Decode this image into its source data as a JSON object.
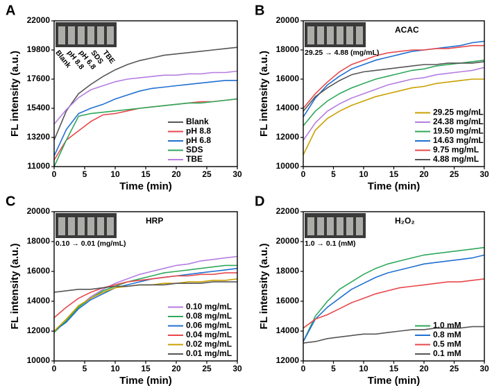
{
  "chart_data": [
    {
      "type": "line",
      "label": "A",
      "xlabel": "Time (min)",
      "ylabel": "FL intensity (a.u.)",
      "inset_caption": null,
      "x": [
        0,
        2,
        4,
        6,
        8,
        10,
        12,
        14,
        16,
        18,
        20,
        22,
        24,
        26,
        28,
        30
      ],
      "xlim": [
        0,
        30
      ],
      "xticks": [
        0,
        5,
        10,
        15,
        20,
        25,
        30
      ],
      "ylim": [
        11000,
        22000
      ],
      "yticks": [
        11000,
        13200,
        15400,
        17600,
        19800,
        22000
      ],
      "legend": "lower right",
      "series": [
        {
          "name": "Blank",
          "color": "#555555",
          "values": [
            13000,
            15200,
            16500,
            17200,
            17800,
            18300,
            18700,
            19000,
            19200,
            19400,
            19500,
            19600,
            19700,
            19800,
            19900,
            20000
          ]
        },
        {
          "name": "pH 8.8",
          "color": "#e8474b",
          "values": [
            11500,
            13000,
            13700,
            14400,
            14900,
            15000,
            15200,
            15400,
            15500,
            15600,
            15700,
            15800,
            15900,
            15900,
            16000,
            16100
          ]
        },
        {
          "name": "pH 6.8",
          "color": "#1f6fd1",
          "values": [
            11800,
            13800,
            15000,
            15400,
            15700,
            16100,
            16400,
            16700,
            16900,
            17000,
            17100,
            17200,
            17300,
            17400,
            17500,
            17500
          ]
        },
        {
          "name": "SDS",
          "color": "#2ea85a",
          "values": [
            11000,
            13000,
            14800,
            15000,
            15100,
            15200,
            15300,
            15400,
            15500,
            15600,
            15700,
            15800,
            15800,
            15900,
            16000,
            16100
          ]
        },
        {
          "name": "TBE",
          "color": "#b47de0",
          "values": [
            14200,
            15300,
            16200,
            16800,
            17100,
            17400,
            17600,
            17700,
            17800,
            17900,
            17900,
            18000,
            18000,
            18100,
            18100,
            18200
          ]
        }
      ]
    },
    {
      "type": "line",
      "label": "B",
      "xlabel": "Time (min)",
      "ylabel": "FL intensity (a.u.)",
      "annotation": "ACAC",
      "inset_caption": "29.25 → 4.88 (mg/mL)",
      "x": [
        0,
        2,
        4,
        6,
        8,
        10,
        12,
        14,
        16,
        18,
        20,
        22,
        24,
        26,
        28,
        30
      ],
      "xlim": [
        0,
        30
      ],
      "xticks": [
        0,
        5,
        10,
        15,
        20,
        25,
        30
      ],
      "ylim": [
        10000,
        20000
      ],
      "yticks": [
        10000,
        12000,
        14000,
        16000,
        18000,
        20000
      ],
      "legend": "lower right",
      "series": [
        {
          "name": "29.25 mg/mL",
          "color": "#c9a000",
          "values": [
            10800,
            12500,
            13300,
            13800,
            14200,
            14500,
            14800,
            15000,
            15200,
            15400,
            15500,
            15700,
            15800,
            15900,
            16000,
            16000
          ]
        },
        {
          "name": "24.38 mg/mL",
          "color": "#b47de0",
          "values": [
            11800,
            13000,
            13800,
            14300,
            14700,
            15000,
            15300,
            15600,
            15800,
            16000,
            16100,
            16300,
            16400,
            16500,
            16600,
            16800
          ]
        },
        {
          "name": "19.50 mg/mL",
          "color": "#2ea85a",
          "values": [
            12800,
            13800,
            14500,
            15000,
            15400,
            15700,
            16000,
            16200,
            16400,
            16600,
            16700,
            16900,
            17000,
            17100,
            17200,
            17300
          ]
        },
        {
          "name": "14.63 mg/mL",
          "color": "#1f6fd1",
          "values": [
            13400,
            14700,
            15600,
            16200,
            16700,
            17000,
            17300,
            17500,
            17700,
            17900,
            18000,
            18100,
            18200,
            18300,
            18500,
            18600
          ]
        },
        {
          "name": "9.75 mg/mL",
          "color": "#e8474b",
          "values": [
            14000,
            15000,
            15800,
            16500,
            17000,
            17300,
            17600,
            17800,
            17900,
            18000,
            18000,
            18100,
            18100,
            18200,
            18300,
            18300
          ]
        },
        {
          "name": "4.88 mg/mL",
          "color": "#555555",
          "values": [
            13800,
            14800,
            15400,
            15900,
            16300,
            16500,
            16600,
            16700,
            16800,
            16900,
            17000,
            17000,
            17100,
            17100,
            17100,
            17200
          ]
        }
      ]
    },
    {
      "type": "line",
      "label": "C",
      "xlabel": "Time (min)",
      "ylabel": "FL intensity (a.u.)",
      "annotation": "HRP",
      "inset_caption": "0.10 →  0.01 (mg/mL)",
      "x": [
        0,
        2,
        4,
        6,
        8,
        10,
        12,
        14,
        16,
        18,
        20,
        22,
        24,
        26,
        28,
        30
      ],
      "xlim": [
        0,
        30
      ],
      "xticks": [
        0,
        5,
        10,
        15,
        20,
        25,
        30
      ],
      "ylim": [
        10000,
        20000
      ],
      "yticks": [
        10000,
        12000,
        14000,
        16000,
        18000,
        20000
      ],
      "legend": "lower right",
      "series": [
        {
          "name": "0.10 mg/mL",
          "color": "#b47de0",
          "values": [
            12000,
            12600,
            13600,
            14300,
            14800,
            15200,
            15500,
            15800,
            16000,
            16200,
            16400,
            16500,
            16700,
            16800,
            16900,
            17000
          ]
        },
        {
          "name": "0.08 mg/mL",
          "color": "#2ea85a",
          "values": [
            11900,
            12700,
            13600,
            14200,
            14700,
            15000,
            15300,
            15500,
            15700,
            15900,
            16000,
            16100,
            16200,
            16300,
            16400,
            16400
          ]
        },
        {
          "name": "0.06 mg/mL",
          "color": "#1f6fd1",
          "values": [
            12000,
            12600,
            13500,
            14100,
            14500,
            14900,
            15100,
            15300,
            15500,
            15600,
            15700,
            15800,
            15900,
            16000,
            16100,
            16200
          ]
        },
        {
          "name": "0.04 mg/mL",
          "color": "#e8474b",
          "values": [
            12900,
            13600,
            14200,
            14600,
            14900,
            15100,
            15300,
            15400,
            15500,
            15600,
            15700,
            15700,
            15800,
            15800,
            15900,
            15900
          ]
        },
        {
          "name": "0.02 mg/mL",
          "color": "#c9a000",
          "values": [
            12000,
            12800,
            13700,
            14200,
            14600,
            14900,
            15000,
            15100,
            15100,
            15200,
            15200,
            15300,
            15300,
            15400,
            15400,
            15500
          ]
        },
        {
          "name": "0.01 mg/mL",
          "color": "#555555",
          "values": [
            14600,
            14700,
            14800,
            14800,
            14900,
            15000,
            15000,
            15100,
            15100,
            15100,
            15200,
            15200,
            15200,
            15300,
            15300,
            15300
          ]
        }
      ]
    },
    {
      "type": "line",
      "label": "D",
      "xlabel": "Time (min)",
      "ylabel": "FL intensity (a.u.)",
      "annotation": "H₂O₂",
      "inset_caption": "1.0 → 0.1 (mM)",
      "x": [
        0,
        2,
        4,
        6,
        8,
        10,
        12,
        14,
        16,
        18,
        20,
        22,
        24,
        26,
        28,
        30
      ],
      "xlim": [
        0,
        30
      ],
      "xticks": [
        0,
        5,
        10,
        15,
        20,
        25,
        30
      ],
      "ylim": [
        12000,
        22000
      ],
      "yticks": [
        12000,
        14000,
        16000,
        18000,
        20000,
        22000
      ],
      "legend": "lower right",
      "series": [
        {
          "name": "1.0 mM",
          "color": "#2ea85a",
          "values": [
            13300,
            15000,
            16000,
            16800,
            17300,
            17800,
            18200,
            18500,
            18700,
            18900,
            19100,
            19200,
            19300,
            19400,
            19500,
            19600
          ]
        },
        {
          "name": "0.8 mM",
          "color": "#1f6fd1",
          "values": [
            13300,
            14800,
            15600,
            16200,
            16800,
            17200,
            17600,
            17900,
            18100,
            18300,
            18500,
            18600,
            18700,
            18800,
            18900,
            19100
          ]
        },
        {
          "name": "0.5 mM",
          "color": "#e8474b",
          "values": [
            14200,
            14800,
            15100,
            15500,
            15900,
            16200,
            16500,
            16700,
            16900,
            17000,
            17100,
            17200,
            17300,
            17300,
            17400,
            17500
          ]
        },
        {
          "name": "0.1 mM",
          "color": "#555555",
          "values": [
            13200,
            13300,
            13500,
            13600,
            13700,
            13800,
            13800,
            13900,
            14000,
            14100,
            14100,
            14200,
            14200,
            14200,
            14300,
            14300
          ]
        }
      ]
    }
  ]
}
